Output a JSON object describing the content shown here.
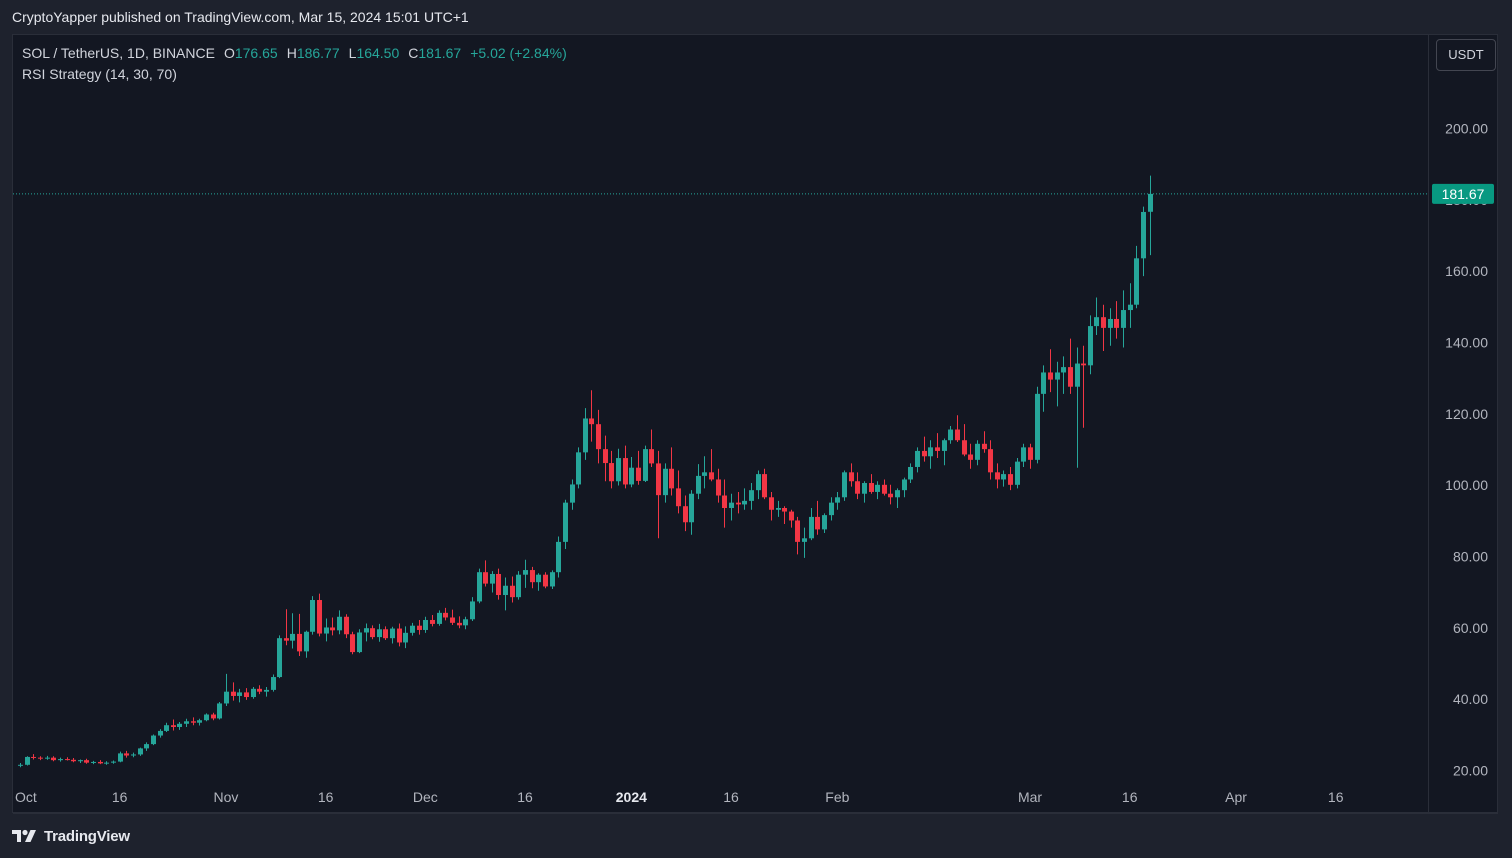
{
  "header": {
    "publish_line": "CryptoYapper published on TradingView.com, Mar 15, 2024 15:01 UTC+1"
  },
  "legend": {
    "symbol": "SOL / TetherUS, 1D, BINANCE",
    "open_label": "O",
    "open_value": "176.65",
    "high_label": "H",
    "high_value": "186.77",
    "low_label": "L",
    "low_value": "164.50",
    "close_label": "C",
    "close_value": "181.67",
    "change": "+5.02 (+2.84%)",
    "indicator": "RSI Strategy (14, 30, 70)"
  },
  "currency_button": "USDT",
  "footer": {
    "brand": "TradingView",
    "logo_icon": "tradingview-logo-icon"
  },
  "colors": {
    "up": "#26a69a",
    "down": "#f23645",
    "price_label_bg": "#089981"
  },
  "chart_data": {
    "type": "candlestick",
    "title": "SOL / TetherUS, 1D, BINANCE",
    "ylim": [
      14,
      222
    ],
    "y_ticks": [
      20,
      40,
      60,
      80,
      100,
      120,
      140,
      160,
      180,
      200
    ],
    "y_tick_labels": [
      "20.00",
      "40.00",
      "60.00",
      "80.00",
      "100.00",
      "120.00",
      "140.00",
      "160.00",
      "180.00",
      "200.00"
    ],
    "x_ticks": [
      {
        "label": "Oct",
        "date": "2023-10-01",
        "bold": false
      },
      {
        "label": "16",
        "date": "2023-10-16",
        "bold": false
      },
      {
        "label": "Nov",
        "date": "2023-11-01",
        "bold": false
      },
      {
        "label": "16",
        "date": "2023-11-16",
        "bold": false
      },
      {
        "label": "Dec",
        "date": "2023-12-01",
        "bold": false
      },
      {
        "label": "16",
        "date": "2023-12-16",
        "bold": false
      },
      {
        "label": "2024",
        "date": "2024-01-01",
        "bold": true
      },
      {
        "label": "16",
        "date": "2024-01-16",
        "bold": false
      },
      {
        "label": "Feb",
        "date": "2024-02-01",
        "bold": false
      },
      {
        "label": "Mar",
        "date": "2024-03-01",
        "bold": false
      },
      {
        "label": "16",
        "date": "2024-03-16",
        "bold": false
      },
      {
        "label": "Apr",
        "date": "2024-04-01",
        "bold": false
      },
      {
        "label": "16",
        "date": "2024-04-16",
        "bold": false
      }
    ],
    "last_price": 181.67,
    "last_price_label": "181.67",
    "series": [
      {
        "name": "SOL/USDT",
        "start_date": "2023-10-01",
        "ohlc": [
          [
            21.4,
            22.1,
            20.9,
            21.6
          ],
          [
            21.6,
            24.0,
            21.4,
            23.8
          ],
          [
            23.8,
            24.6,
            23.1,
            23.6
          ],
          [
            23.6,
            24.0,
            22.9,
            23.4
          ],
          [
            23.4,
            24.1,
            23.0,
            23.6
          ],
          [
            23.6,
            24.0,
            22.6,
            22.9
          ],
          [
            22.9,
            23.6,
            22.5,
            23.2
          ],
          [
            23.2,
            23.7,
            22.8,
            23.0
          ],
          [
            23.0,
            23.5,
            22.3,
            22.6
          ],
          [
            22.6,
            23.1,
            22.1,
            22.9
          ],
          [
            22.9,
            23.3,
            21.9,
            22.2
          ],
          [
            22.2,
            22.7,
            21.8,
            22.4
          ],
          [
            22.4,
            22.9,
            21.8,
            22.0
          ],
          [
            22.0,
            22.6,
            21.6,
            22.2
          ],
          [
            22.2,
            22.8,
            21.9,
            22.5
          ],
          [
            22.5,
            25.3,
            22.3,
            24.8
          ],
          [
            24.8,
            25.5,
            23.6,
            24.2
          ],
          [
            24.2,
            25.0,
            23.7,
            24.5
          ],
          [
            24.5,
            26.4,
            24.1,
            26.2
          ],
          [
            26.2,
            27.9,
            25.5,
            27.4
          ],
          [
            27.4,
            30.1,
            27.1,
            29.8
          ],
          [
            29.8,
            31.6,
            29.2,
            31.1
          ],
          [
            31.1,
            33.4,
            30.8,
            32.7
          ],
          [
            32.7,
            34.3,
            31.2,
            32.2
          ],
          [
            32.2,
            33.6,
            31.4,
            33.1
          ],
          [
            33.1,
            34.5,
            32.2,
            33.8
          ],
          [
            33.8,
            34.9,
            32.7,
            33.4
          ],
          [
            33.4,
            34.5,
            32.6,
            34.1
          ],
          [
            34.1,
            36.0,
            33.8,
            35.7
          ],
          [
            35.7,
            36.2,
            34.1,
            34.6
          ],
          [
            34.6,
            39.2,
            34.3,
            38.8
          ],
          [
            38.8,
            47.1,
            38.1,
            42.1
          ],
          [
            42.1,
            44.7,
            39.6,
            40.9
          ],
          [
            40.9,
            42.9,
            39.1,
            41.9
          ],
          [
            41.9,
            43.1,
            39.8,
            40.6
          ],
          [
            40.6,
            43.4,
            40.1,
            42.9
          ],
          [
            42.9,
            43.9,
            41.4,
            42.1
          ],
          [
            42.1,
            43.4,
            40.7,
            42.6
          ],
          [
            42.6,
            46.9,
            42.1,
            46.2
          ],
          [
            46.2,
            57.9,
            45.9,
            57.1
          ],
          [
            57.1,
            65.2,
            55.1,
            56.4
          ],
          [
            56.4,
            64.1,
            54.2,
            58.3
          ],
          [
            58.3,
            63.9,
            52.1,
            53.4
          ],
          [
            53.4,
            59.2,
            51.6,
            58.9
          ],
          [
            58.9,
            68.9,
            58.1,
            67.8
          ],
          [
            67.8,
            69.6,
            57.6,
            58.4
          ],
          [
            58.4,
            62.6,
            56.2,
            60.1
          ],
          [
            60.1,
            62.9,
            57.9,
            59.3
          ],
          [
            59.3,
            64.9,
            58.2,
            63.1
          ],
          [
            63.1,
            63.8,
            57.1,
            58.2
          ],
          [
            58.2,
            58.9,
            52.6,
            53.2
          ],
          [
            53.2,
            59.6,
            52.9,
            58.7
          ],
          [
            58.7,
            61.2,
            56.2,
            59.9
          ],
          [
            59.9,
            60.7,
            56.8,
            57.4
          ],
          [
            57.4,
            61.1,
            56.1,
            59.6
          ],
          [
            59.6,
            60.4,
            56.6,
            57.1
          ],
          [
            57.1,
            60.3,
            55.6,
            59.8
          ],
          [
            59.8,
            61.2,
            54.8,
            55.9
          ],
          [
            55.9,
            60.4,
            54.3,
            58.6
          ],
          [
            58.6,
            61.4,
            57.8,
            60.6
          ],
          [
            60.6,
            62.2,
            58.1,
            59.4
          ],
          [
            59.4,
            63.1,
            58.6,
            62.2
          ],
          [
            62.2,
            63.6,
            60.4,
            61.1
          ],
          [
            61.1,
            64.9,
            60.6,
            64.2
          ],
          [
            64.2,
            65.6,
            62.1,
            62.9
          ],
          [
            62.9,
            65.1,
            60.8,
            61.4
          ],
          [
            61.4,
            63.2,
            59.9,
            60.7
          ],
          [
            60.7,
            63.1,
            59.6,
            62.4
          ],
          [
            62.4,
            68.6,
            61.9,
            67.4
          ],
          [
            67.4,
            76.6,
            66.9,
            75.6
          ],
          [
            75.6,
            78.9,
            71.6,
            72.4
          ],
          [
            72.4,
            75.9,
            69.9,
            75.1
          ],
          [
            75.1,
            76.6,
            67.9,
            69.2
          ],
          [
            69.2,
            74.1,
            64.9,
            71.8
          ],
          [
            71.8,
            74.4,
            67.1,
            68.6
          ],
          [
            68.6,
            75.9,
            67.9,
            74.9
          ],
          [
            74.9,
            79.1,
            71.2,
            76.2
          ],
          [
            76.2,
            77.1,
            71.1,
            72.8
          ],
          [
            72.8,
            75.3,
            70.4,
            74.9
          ],
          [
            74.9,
            75.6,
            71.1,
            71.6
          ],
          [
            71.6,
            76.1,
            70.9,
            75.6
          ],
          [
            75.6,
            85.6,
            74.1,
            84.1
          ],
          [
            84.1,
            95.9,
            82.1,
            95.1
          ],
          [
            95.1,
            101.6,
            93.1,
            100.2
          ],
          [
            100.2,
            110.6,
            99.1,
            109.2
          ],
          [
            109.2,
            121.6,
            107.1,
            118.7
          ],
          [
            118.7,
            126.6,
            112.2,
            117.1
          ],
          [
            117.1,
            121.1,
            106.1,
            110.1
          ],
          [
            110.1,
            113.9,
            101.1,
            106.2
          ],
          [
            106.2,
            109.6,
            99.1,
            101.1
          ],
          [
            101.1,
            110.2,
            99.9,
            107.6
          ],
          [
            107.6,
            111.1,
            99.1,
            100.2
          ],
          [
            100.2,
            107.9,
            99.4,
            104.9
          ],
          [
            104.9,
            109.6,
            100.1,
            101.2
          ],
          [
            101.2,
            111.1,
            100.9,
            110.1
          ],
          [
            110.1,
            115.6,
            105.1,
            106.1
          ],
          [
            106.1,
            109.6,
            85.1,
            97.2
          ],
          [
            97.2,
            106.1,
            95.1,
            104.6
          ],
          [
            104.6,
            110.6,
            97.1,
            99.1
          ],
          [
            99.1,
            104.1,
            92.1,
            94.1
          ],
          [
            94.1,
            97.1,
            87.1,
            89.6
          ],
          [
            89.6,
            98.6,
            86.1,
            97.6
          ],
          [
            97.6,
            105.9,
            96.1,
            102.6
          ],
          [
            102.6,
            108.1,
            99.1,
            103.6
          ],
          [
            103.6,
            110.1,
            101.1,
            101.6
          ],
          [
            101.6,
            104.6,
            95.1,
            97.1
          ],
          [
            97.1,
            101.6,
            88.1,
            93.6
          ],
          [
            93.6,
            97.6,
            90.1,
            95.1
          ],
          [
            95.1,
            98.1,
            92.1,
            94.6
          ],
          [
            94.6,
            99.1,
            93.1,
            95.6
          ],
          [
            95.6,
            100.6,
            93.1,
            98.6
          ],
          [
            98.6,
            104.1,
            96.1,
            103.1
          ],
          [
            103.1,
            104.6,
            96.1,
            96.6
          ],
          [
            96.6,
            98.1,
            90.1,
            93.1
          ],
          [
            93.1,
            95.6,
            91.1,
            93.6
          ],
          [
            93.6,
            94.1,
            89.1,
            92.6
          ],
          [
            92.6,
            93.1,
            88.1,
            90.1
          ],
          [
            90.1,
            91.1,
            80.6,
            84.1
          ],
          [
            84.1,
            88.1,
            79.6,
            85.1
          ],
          [
            85.1,
            93.6,
            84.6,
            91.1
          ],
          [
            91.1,
            95.6,
            86.1,
            87.6
          ],
          [
            87.6,
            92.1,
            86.6,
            91.6
          ],
          [
            91.6,
            96.6,
            90.1,
            95.1
          ],
          [
            95.1,
            98.1,
            93.1,
            96.6
          ],
          [
            96.6,
            104.1,
            95.6,
            103.6
          ],
          [
            103.6,
            106.1,
            99.6,
            101.1
          ],
          [
            101.1,
            103.6,
            96.1,
            97.6
          ],
          [
            97.6,
            101.1,
            95.1,
            100.6
          ],
          [
            100.6,
            103.1,
            97.6,
            98.1
          ],
          [
            98.1,
            101.1,
            96.1,
            100.1
          ],
          [
            100.1,
            101.6,
            97.1,
            97.6
          ],
          [
            97.6,
            100.1,
            94.6,
            96.6
          ],
          [
            96.6,
            99.1,
            93.6,
            98.6
          ],
          [
            98.6,
            102.1,
            96.6,
            101.6
          ],
          [
            101.6,
            106.1,
            100.6,
            105.1
          ],
          [
            105.1,
            110.6,
            103.6,
            109.6
          ],
          [
            109.6,
            113.6,
            106.6,
            108.1
          ],
          [
            108.1,
            112.6,
            104.6,
            110.6
          ],
          [
            110.6,
            114.6,
            107.6,
            109.6
          ],
          [
            109.6,
            113.1,
            105.6,
            112.6
          ],
          [
            112.6,
            116.6,
            111.6,
            115.6
          ],
          [
            115.6,
            119.6,
            112.1,
            112.6
          ],
          [
            112.6,
            117.1,
            108.1,
            108.6
          ],
          [
            108.6,
            111.6,
            104.6,
            107.1
          ],
          [
            107.1,
            112.6,
            105.6,
            111.6
          ],
          [
            111.6,
            115.1,
            109.1,
            110.1
          ],
          [
            110.1,
            112.6,
            101.6,
            103.6
          ],
          [
            103.6,
            106.1,
            99.1,
            101.6
          ],
          [
            101.6,
            104.1,
            99.6,
            103.1
          ],
          [
            103.1,
            105.1,
            98.6,
            100.1
          ],
          [
            100.1,
            107.6,
            99.1,
            106.6
          ],
          [
            106.6,
            111.6,
            105.1,
            110.6
          ],
          [
            110.6,
            111.6,
            104.6,
            107.1
          ],
          [
            107.1,
            127.6,
            106.1,
            125.6
          ],
          [
            125.6,
            133.6,
            120.6,
            131.6
          ],
          [
            131.6,
            138.1,
            126.1,
            129.6
          ],
          [
            129.6,
            134.6,
            122.1,
            131.6
          ],
          [
            131.6,
            136.1,
            125.6,
            133.1
          ],
          [
            133.1,
            141.1,
            125.6,
            127.6
          ],
          [
            127.6,
            138.6,
            104.9,
            134.1
          ],
          [
            134.1,
            139.1,
            116.1,
            133.6
          ],
          [
            133.6,
            147.6,
            131.1,
            144.6
          ],
          [
            144.6,
            152.6,
            142.1,
            147.1
          ],
          [
            147.1,
            150.6,
            137.6,
            144.1
          ],
          [
            144.1,
            149.6,
            139.1,
            146.6
          ],
          [
            146.6,
            151.6,
            141.1,
            144.1
          ],
          [
            144.1,
            154.6,
            138.6,
            149.1
          ],
          [
            149.1,
            156.6,
            144.1,
            150.6
          ],
          [
            150.6,
            167.1,
            149.6,
            163.6
          ],
          [
            163.6,
            178.1,
            158.6,
            176.6
          ],
          [
            176.65,
            186.77,
            164.5,
            181.67
          ]
        ]
      }
    ]
  }
}
